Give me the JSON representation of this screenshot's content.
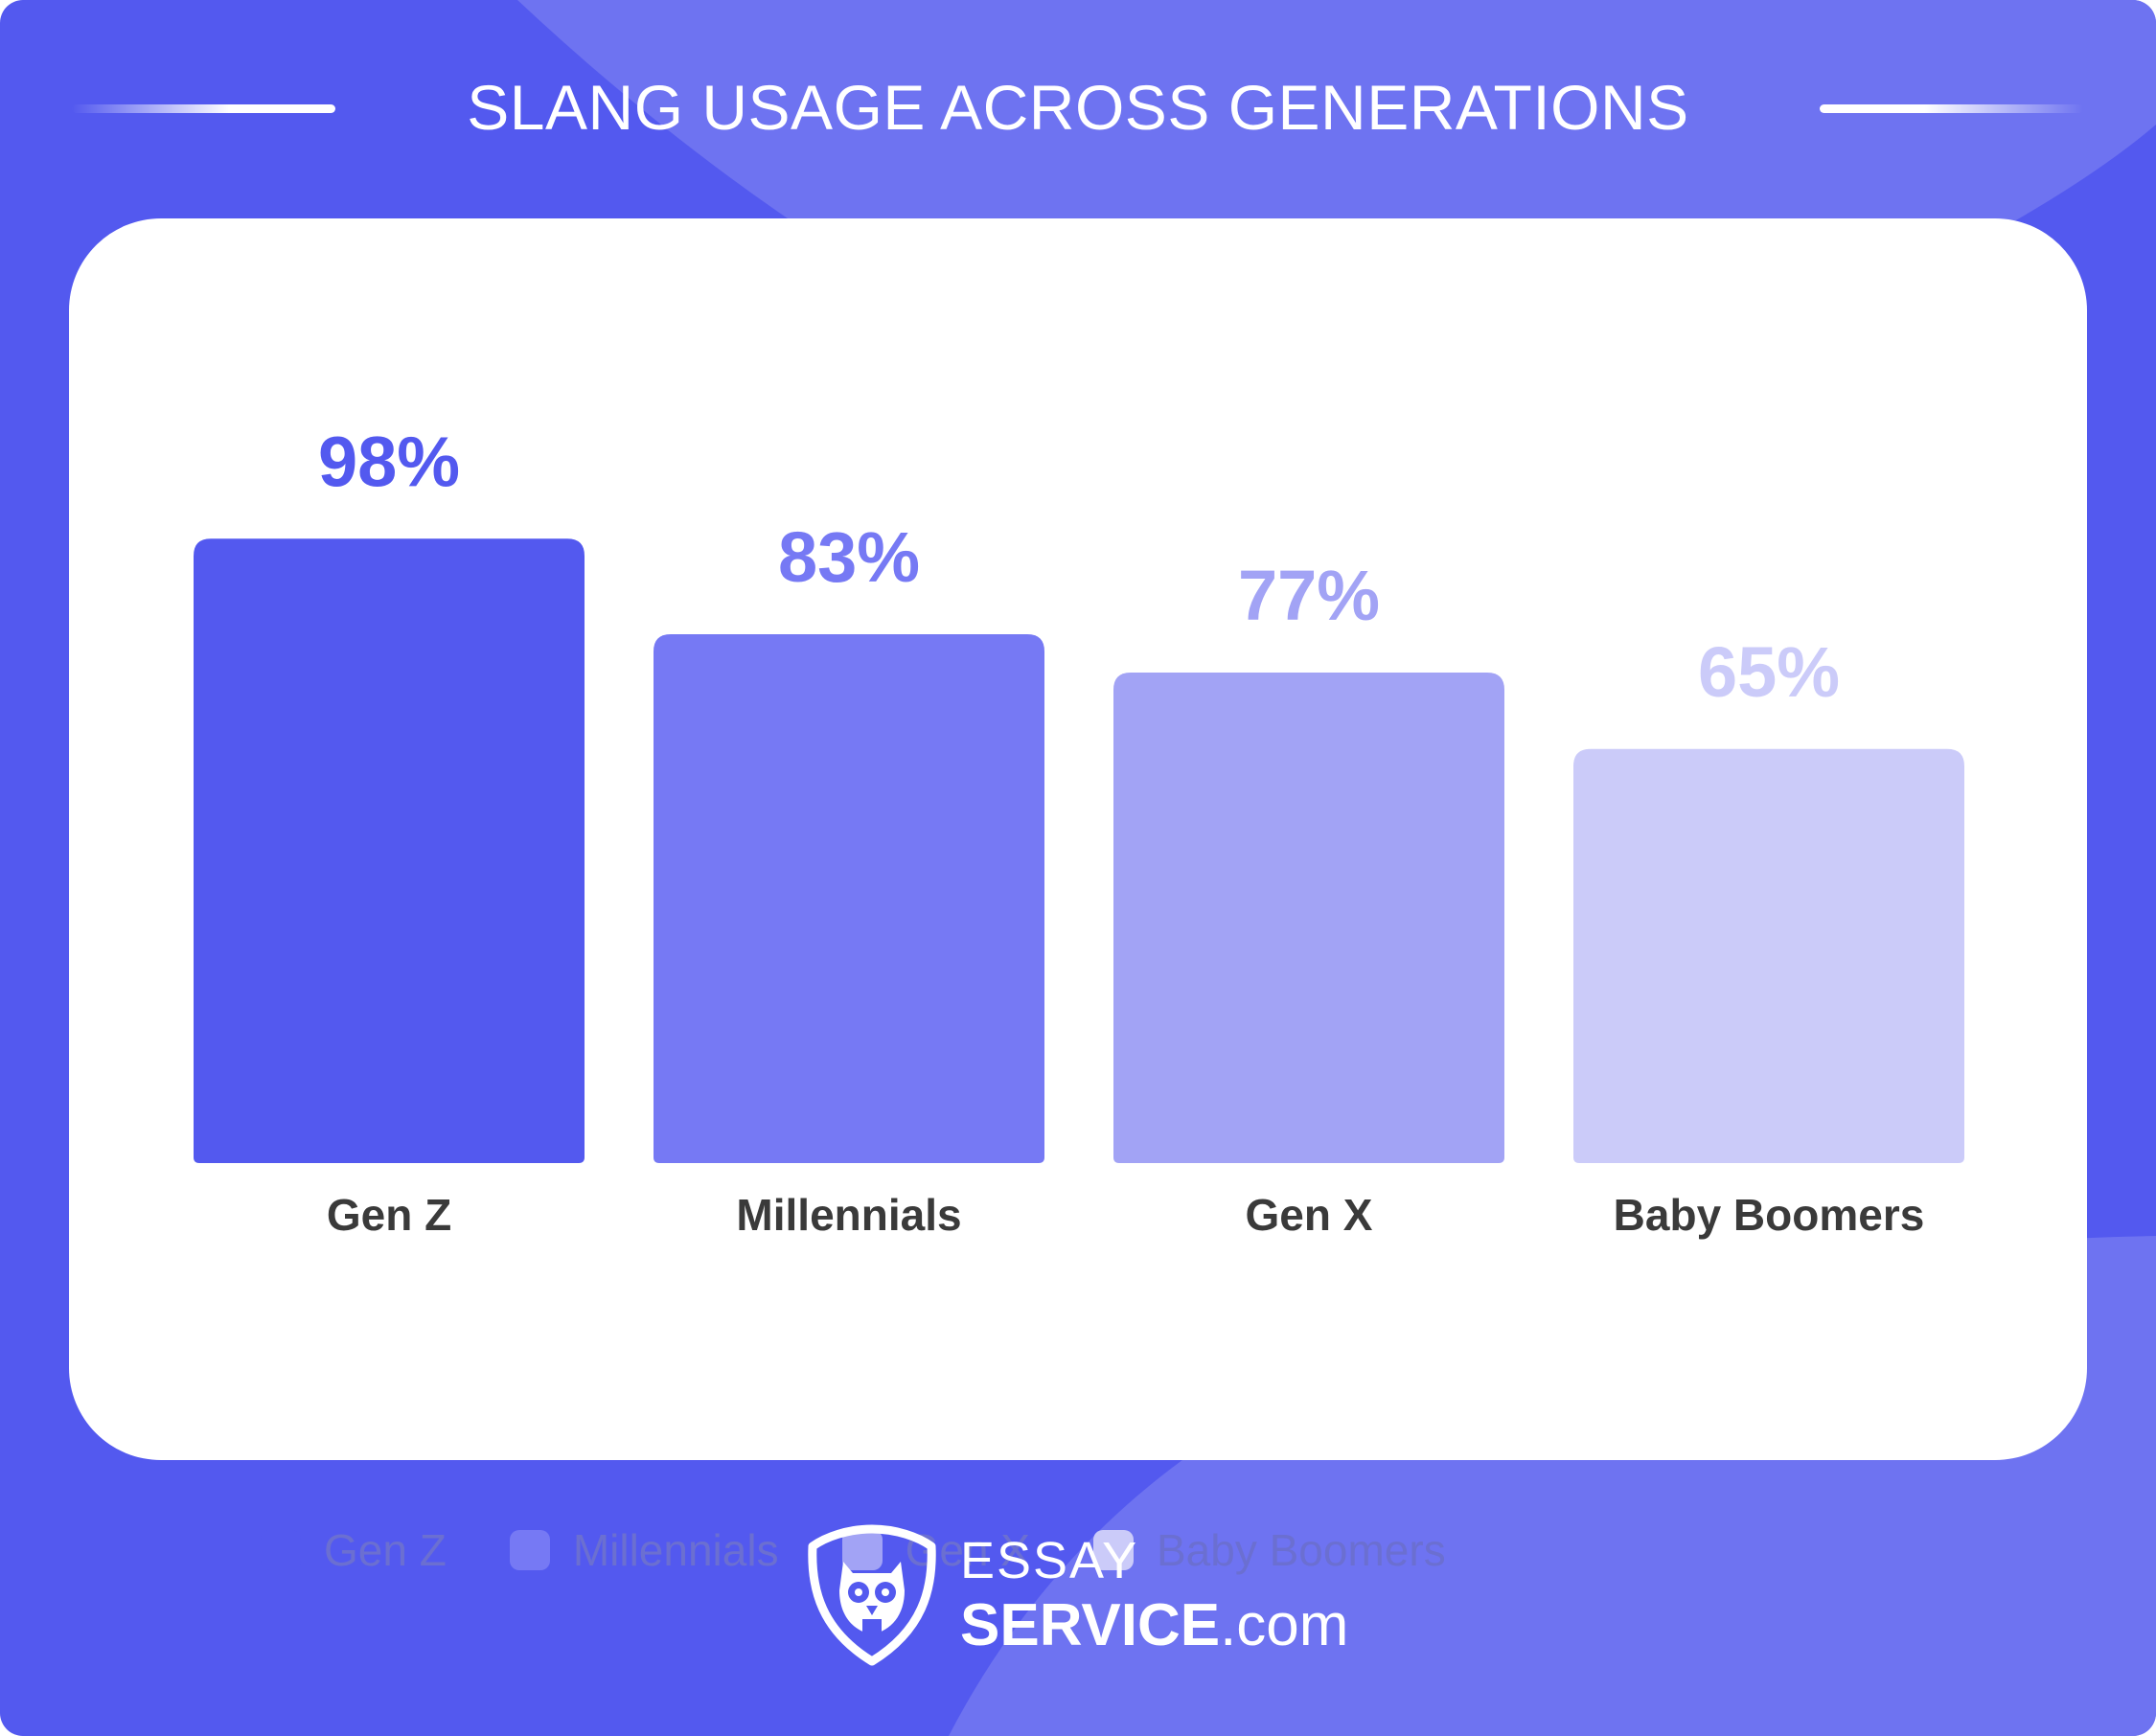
{
  "title": "SLANG USAGE ACROSS GENERATIONS",
  "colors": {
    "background": "#5359ef",
    "background_accent": "#6e73f1",
    "axis_label": "#3a3a3a",
    "legend_text": "#6b6fd1"
  },
  "chart_data": {
    "type": "bar",
    "categories": [
      "Gen Z",
      "Millennials",
      "Gen X",
      "Baby Boomers"
    ],
    "values": [
      98,
      83,
      77,
      65
    ],
    "value_labels": [
      "98%",
      "83%",
      "77%",
      "65%"
    ],
    "unit": "%",
    "colors": [
      "#5359ef",
      "#7679f4",
      "#a2a3f5",
      "#cbcbf9"
    ],
    "ylim": [
      0,
      100
    ],
    "grid": false,
    "legend_position": "bottom-left",
    "legend": [
      "Gen Z",
      "Millennials",
      "Gen X",
      "Baby Boomers"
    ]
  },
  "brand": {
    "logo_icon": "owl-shield-icon",
    "line1": "ESSAY",
    "line2_strong": "SERVICE",
    "line2_suffix": ".com"
  }
}
